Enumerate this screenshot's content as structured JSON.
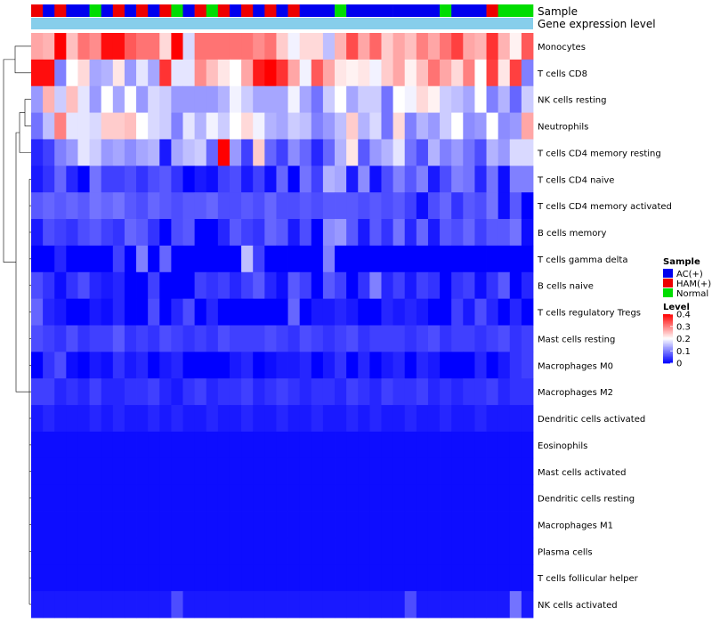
{
  "chart_data": {
    "type": "heatmap",
    "title": "",
    "annotation_rows": [
      "Sample",
      "Gene expression level"
    ],
    "sample_groups": [
      "AC(+)",
      "HAM(+)",
      "Normal"
    ],
    "group_colors": {
      "AC(+)": "#0000ee",
      "HAM(+)": "#ee0000",
      "Normal": "#00dd00"
    },
    "expression_color": "#87ceeb",
    "sample_annotation": [
      "HAM(+)",
      "AC(+)",
      "HAM(+)",
      "AC(+)",
      "AC(+)",
      "Normal",
      "AC(+)",
      "HAM(+)",
      "AC(+)",
      "HAM(+)",
      "AC(+)",
      "HAM(+)",
      "Normal",
      "AC(+)",
      "HAM(+)",
      "Normal",
      "HAM(+)",
      "AC(+)",
      "HAM(+)",
      "AC(+)",
      "HAM(+)",
      "AC(+)",
      "HAM(+)",
      "AC(+)",
      "AC(+)",
      "AC(+)",
      "Normal",
      "AC(+)",
      "AC(+)",
      "AC(+)",
      "AC(+)",
      "AC(+)",
      "AC(+)",
      "AC(+)",
      "AC(+)",
      "Normal",
      "AC(+)",
      "AC(+)",
      "AC(+)",
      "HAM(+)",
      "Normal",
      "Normal",
      "Normal"
    ],
    "rows": [
      "Monocytes",
      "T cells CD8",
      "NK cells resting",
      "Neutrophils",
      "T cells CD4 memory resting",
      "T cells CD4 naive",
      "T cells CD4 memory activated",
      "B cells memory",
      "T cells gamma delta",
      "B cells naive",
      "T cells regulatory  Tregs",
      "Mast cells resting",
      "Macrophages M0",
      "Macrophages M2",
      "Dendritic cells activated",
      "Eosinophils",
      "Mast cells activated",
      "Dendritic cells resting",
      "Macrophages M1",
      "Plasma cells",
      "T cells follicular helper",
      "NK cells activated"
    ],
    "values": [
      [
        0.27,
        0.26,
        0.4,
        0.25,
        0.31,
        0.29,
        0.39,
        0.39,
        0.33,
        0.31,
        0.31,
        0.23,
        0.4,
        0.17,
        0.31,
        0.31,
        0.31,
        0.31,
        0.31,
        0.29,
        0.31,
        0.24,
        0.19,
        0.23,
        0.23,
        0.15,
        0.26,
        0.34,
        0.27,
        0.32,
        0.24,
        0.27,
        0.25,
        0.3,
        0.27,
        0.31,
        0.35,
        0.27,
        0.26,
        0.36,
        0.26,
        0.21,
        0.33
      ],
      [
        0.39,
        0.39,
        0.1,
        0.2,
        0.23,
        0.13,
        0.14,
        0.22,
        0.12,
        0.18,
        0.13,
        0.36,
        0.18,
        0.18,
        0.29,
        0.25,
        0.22,
        0.2,
        0.27,
        0.38,
        0.4,
        0.36,
        0.27,
        0.19,
        0.33,
        0.27,
        0.22,
        0.21,
        0.22,
        0.19,
        0.24,
        0.27,
        0.21,
        0.25,
        0.31,
        0.27,
        0.23,
        0.3,
        0.2,
        0.35,
        0.22,
        0.35,
        0.1
      ],
      [
        0.12,
        0.26,
        0.16,
        0.25,
        0.18,
        0.12,
        0.2,
        0.13,
        0.2,
        0.12,
        0.17,
        0.16,
        0.12,
        0.12,
        0.12,
        0.12,
        0.14,
        0.19,
        0.16,
        0.13,
        0.13,
        0.13,
        0.19,
        0.13,
        0.09,
        0.16,
        0.2,
        0.13,
        0.16,
        0.16,
        0.09,
        0.2,
        0.19,
        0.23,
        0.21,
        0.16,
        0.15,
        0.13,
        0.2,
        0.1,
        0.14,
        0.08,
        0.16
      ],
      [
        0.09,
        0.15,
        0.3,
        0.18,
        0.18,
        0.17,
        0.24,
        0.24,
        0.25,
        0.2,
        0.17,
        0.16,
        0.1,
        0.18,
        0.14,
        0.19,
        0.16,
        0.2,
        0.23,
        0.19,
        0.14,
        0.13,
        0.16,
        0.15,
        0.1,
        0.12,
        0.15,
        0.24,
        0.14,
        0.17,
        0.09,
        0.23,
        0.1,
        0.14,
        0.12,
        0.16,
        0.2,
        0.11,
        0.12,
        0.2,
        0.11,
        0.12,
        0.27
      ],
      [
        0.03,
        0.05,
        0.1,
        0.12,
        0.18,
        0.16,
        0.12,
        0.13,
        0.11,
        0.13,
        0.14,
        0.02,
        0.13,
        0.15,
        0.16,
        0.08,
        0.4,
        0.12,
        0.05,
        0.24,
        0.08,
        0.05,
        0.11,
        0.08,
        0.03,
        0.08,
        0.14,
        0.22,
        0.07,
        0.12,
        0.14,
        0.18,
        0.09,
        0.06,
        0.14,
        0.1,
        0.12,
        0.09,
        0.06,
        0.14,
        0.12,
        0.17,
        0.17
      ],
      [
        0.02,
        0.04,
        0.08,
        0.03,
        0.0,
        0.09,
        0.05,
        0.05,
        0.06,
        0.04,
        0.06,
        0.07,
        0.04,
        0.0,
        0.02,
        0.01,
        0.05,
        0.06,
        0.02,
        0.05,
        0.01,
        0.08,
        0.0,
        0.09,
        0.05,
        0.14,
        0.13,
        0.02,
        0.11,
        0.01,
        0.06,
        0.1,
        0.07,
        0.1,
        0.02,
        0.06,
        0.1,
        0.09,
        0.03,
        0.09,
        0.01,
        0.1,
        0.1
      ],
      [
        0.07,
        0.08,
        0.07,
        0.08,
        0.07,
        0.09,
        0.08,
        0.09,
        0.07,
        0.06,
        0.08,
        0.07,
        0.06,
        0.07,
        0.07,
        0.08,
        0.06,
        0.06,
        0.07,
        0.06,
        0.08,
        0.06,
        0.06,
        0.07,
        0.06,
        0.07,
        0.07,
        0.07,
        0.06,
        0.07,
        0.06,
        0.07,
        0.05,
        0.01,
        0.06,
        0.08,
        0.04,
        0.07,
        0.06,
        0.09,
        0.01,
        0.07,
        0.0
      ],
      [
        0.02,
        0.06,
        0.05,
        0.04,
        0.06,
        0.07,
        0.05,
        0.04,
        0.08,
        0.07,
        0.04,
        0.0,
        0.06,
        0.07,
        0.0,
        0.0,
        0.03,
        0.07,
        0.05,
        0.04,
        0.08,
        0.07,
        0.02,
        0.06,
        0.0,
        0.11,
        0.12,
        0.07,
        0.02,
        0.07,
        0.04,
        0.09,
        0.03,
        0.08,
        0.02,
        0.07,
        0.06,
        0.08,
        0.05,
        0.07,
        0.07,
        0.09,
        0.01
      ],
      [
        0.0,
        0.0,
        0.03,
        0.0,
        0.0,
        0.0,
        0.0,
        0.05,
        0.0,
        0.1,
        0.0,
        0.08,
        0.0,
        0.0,
        0.0,
        0.0,
        0.0,
        0.0,
        0.15,
        0.05,
        0.0,
        0.0,
        0.0,
        0.0,
        0.0,
        0.1,
        0.0,
        0.0,
        0.0,
        0.0,
        0.0,
        0.0,
        0.0,
        0.0,
        0.0,
        0.0,
        0.0,
        0.0,
        0.0,
        0.0,
        0.0,
        0.0,
        0.0
      ],
      [
        0.06,
        0.04,
        0.01,
        0.04,
        0.06,
        0.03,
        0.02,
        0.03,
        0.0,
        0.0,
        0.05,
        0.0,
        0.0,
        0.0,
        0.05,
        0.04,
        0.05,
        0.03,
        0.05,
        0.07,
        0.03,
        0.01,
        0.07,
        0.05,
        0.0,
        0.07,
        0.05,
        0.0,
        0.04,
        0.1,
        0.03,
        0.05,
        0.02,
        0.05,
        0.04,
        0.0,
        0.04,
        0.05,
        0.01,
        0.04,
        0.07,
        0.0,
        0.03
      ],
      [
        0.08,
        0.03,
        0.02,
        0.0,
        0.0,
        0.02,
        0.01,
        0.03,
        0.0,
        0.0,
        0.06,
        0.0,
        0.03,
        0.06,
        0.0,
        0.03,
        0.0,
        0.0,
        0.0,
        0.0,
        0.0,
        0.0,
        0.08,
        0.0,
        0.02,
        0.02,
        0.03,
        0.02,
        0.0,
        0.0,
        0.03,
        0.02,
        0.03,
        0.02,
        0.0,
        0.0,
        0.05,
        0.02,
        0.06,
        0.03,
        0.0,
        0.03,
        0.0
      ],
      [
        0.06,
        0.05,
        0.04,
        0.06,
        0.04,
        0.05,
        0.05,
        0.07,
        0.04,
        0.05,
        0.04,
        0.06,
        0.05,
        0.04,
        0.05,
        0.04,
        0.06,
        0.05,
        0.05,
        0.05,
        0.06,
        0.05,
        0.04,
        0.06,
        0.05,
        0.04,
        0.05,
        0.06,
        0.04,
        0.05,
        0.05,
        0.05,
        0.04,
        0.05,
        0.06,
        0.04,
        0.05,
        0.05,
        0.04,
        0.05,
        0.06,
        0.04,
        0.05
      ],
      [
        0.0,
        0.04,
        0.06,
        0.01,
        0.0,
        0.02,
        0.01,
        0.04,
        0.02,
        0.03,
        0.0,
        0.02,
        0.03,
        0.0,
        0.0,
        0.0,
        0.0,
        0.02,
        0.03,
        0.0,
        0.01,
        0.02,
        0.02,
        0.03,
        0.0,
        0.02,
        0.04,
        0.0,
        0.03,
        0.0,
        0.02,
        0.03,
        0.0,
        0.03,
        0.02,
        0.0,
        0.0,
        0.0,
        0.03,
        0.0,
        0.02,
        0.04,
        0.05
      ],
      [
        0.05,
        0.05,
        0.03,
        0.04,
        0.03,
        0.05,
        0.03,
        0.03,
        0.04,
        0.04,
        0.05,
        0.03,
        0.02,
        0.04,
        0.05,
        0.03,
        0.04,
        0.04,
        0.05,
        0.03,
        0.04,
        0.05,
        0.04,
        0.03,
        0.04,
        0.04,
        0.03,
        0.05,
        0.04,
        0.03,
        0.05,
        0.04,
        0.04,
        0.05,
        0.03,
        0.04,
        0.03,
        0.04,
        0.04,
        0.05,
        0.03,
        0.04,
        0.04
      ],
      [
        0.02,
        0.03,
        0.02,
        0.02,
        0.02,
        0.03,
        0.02,
        0.03,
        0.02,
        0.02,
        0.03,
        0.02,
        0.03,
        0.02,
        0.02,
        0.03,
        0.02,
        0.02,
        0.03,
        0.02,
        0.02,
        0.03,
        0.02,
        0.02,
        0.03,
        0.02,
        0.02,
        0.03,
        0.02,
        0.03,
        0.02,
        0.02,
        0.03,
        0.02,
        0.02,
        0.03,
        0.02,
        0.02,
        0.03,
        0.02,
        0.02,
        0.02,
        0.02
      ],
      [
        0.01,
        0.01,
        0.01,
        0.01,
        0.01,
        0.01,
        0.01,
        0.01,
        0.01,
        0.01,
        0.01,
        0.01,
        0.01,
        0.01,
        0.01,
        0.01,
        0.01,
        0.01,
        0.01,
        0.01,
        0.01,
        0.01,
        0.01,
        0.01,
        0.01,
        0.01,
        0.01,
        0.01,
        0.01,
        0.01,
        0.01,
        0.01,
        0.01,
        0.01,
        0.01,
        0.01,
        0.01,
        0.01,
        0.01,
        0.01,
        0.01,
        0.01,
        0.01
      ],
      [
        0.01,
        0.01,
        0.01,
        0.01,
        0.01,
        0.01,
        0.01,
        0.01,
        0.01,
        0.01,
        0.01,
        0.01,
        0.01,
        0.01,
        0.01,
        0.01,
        0.01,
        0.01,
        0.01,
        0.01,
        0.01,
        0.01,
        0.01,
        0.01,
        0.01,
        0.01,
        0.01,
        0.01,
        0.01,
        0.01,
        0.01,
        0.01,
        0.01,
        0.01,
        0.01,
        0.01,
        0.01,
        0.01,
        0.01,
        0.01,
        0.01,
        0.01,
        0.01
      ],
      [
        0.01,
        0.01,
        0.01,
        0.01,
        0.01,
        0.01,
        0.01,
        0.01,
        0.01,
        0.01,
        0.01,
        0.01,
        0.01,
        0.01,
        0.01,
        0.01,
        0.01,
        0.01,
        0.01,
        0.01,
        0.01,
        0.01,
        0.01,
        0.01,
        0.01,
        0.01,
        0.01,
        0.01,
        0.01,
        0.01,
        0.01,
        0.01,
        0.01,
        0.01,
        0.01,
        0.01,
        0.01,
        0.01,
        0.01,
        0.01,
        0.01,
        0.01,
        0.01
      ],
      [
        0.01,
        0.01,
        0.01,
        0.01,
        0.01,
        0.01,
        0.01,
        0.01,
        0.01,
        0.01,
        0.01,
        0.01,
        0.01,
        0.01,
        0.01,
        0.01,
        0.01,
        0.01,
        0.01,
        0.01,
        0.01,
        0.01,
        0.01,
        0.01,
        0.01,
        0.01,
        0.01,
        0.01,
        0.01,
        0.01,
        0.01,
        0.01,
        0.01,
        0.01,
        0.01,
        0.01,
        0.01,
        0.01,
        0.01,
        0.01,
        0.01,
        0.01,
        0.01
      ],
      [
        0.01,
        0.01,
        0.01,
        0.01,
        0.01,
        0.01,
        0.01,
        0.01,
        0.01,
        0.01,
        0.01,
        0.01,
        0.01,
        0.01,
        0.01,
        0.01,
        0.01,
        0.01,
        0.01,
        0.01,
        0.01,
        0.01,
        0.01,
        0.01,
        0.01,
        0.01,
        0.01,
        0.01,
        0.01,
        0.01,
        0.01,
        0.01,
        0.01,
        0.01,
        0.01,
        0.01,
        0.01,
        0.01,
        0.01,
        0.01,
        0.01,
        0.01,
        0.01
      ],
      [
        0.01,
        0.01,
        0.01,
        0.01,
        0.01,
        0.01,
        0.01,
        0.01,
        0.01,
        0.01,
        0.01,
        0.01,
        0.01,
        0.01,
        0.01,
        0.01,
        0.01,
        0.01,
        0.01,
        0.01,
        0.01,
        0.01,
        0.01,
        0.01,
        0.01,
        0.01,
        0.01,
        0.01,
        0.01,
        0.01,
        0.01,
        0.01,
        0.01,
        0.01,
        0.01,
        0.01,
        0.01,
        0.01,
        0.01,
        0.01,
        0.01,
        0.01,
        0.01
      ],
      [
        0.02,
        0.02,
        0.02,
        0.02,
        0.02,
        0.02,
        0.02,
        0.02,
        0.02,
        0.02,
        0.02,
        0.02,
        0.06,
        0.02,
        0.02,
        0.02,
        0.02,
        0.02,
        0.02,
        0.02,
        0.02,
        0.02,
        0.02,
        0.02,
        0.02,
        0.02,
        0.02,
        0.02,
        0.02,
        0.02,
        0.02,
        0.02,
        0.06,
        0.02,
        0.02,
        0.02,
        0.02,
        0.02,
        0.02,
        0.02,
        0.02,
        0.09,
        0.02
      ]
    ],
    "legend": {
      "sample_title": "Sample",
      "sample_items": [
        "AC(+)",
        "HAM(+)",
        "Normal"
      ],
      "level_title": "Level",
      "level_ticks": [
        0.4,
        0.3,
        0.2,
        0.1,
        0
      ],
      "level_tick_labels": [
        "0.4",
        "0.3",
        "0.2",
        "0.1",
        "0"
      ],
      "range": [
        0,
        0.4
      ],
      "placement": "right"
    },
    "colormap": {
      "low": "#0000ff",
      "mid": "#ffffff",
      "high": "#ff0000",
      "mid_value": 0.2
    }
  }
}
